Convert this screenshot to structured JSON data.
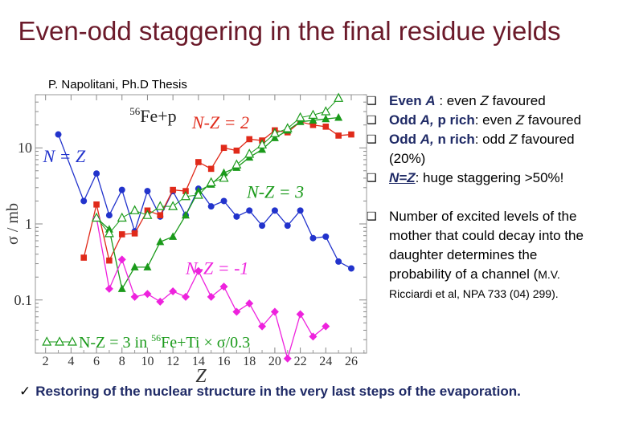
{
  "title": "Even-odd staggering in the final residue yields",
  "source": "P. Napolitani, Ph.D Thesis",
  "bullets": [
    {
      "parts": [
        "Even ",
        "A",
        " :  even ",
        "Z",
        " favoured"
      ]
    },
    {
      "parts": [
        "Odd ",
        "A,",
        " p rich",
        ": even ",
        "Z",
        " favoured"
      ]
    },
    {
      "parts": [
        "Odd ",
        "A,",
        " n rich",
        ": odd ",
        "Z",
        " favoured"
      ],
      "extra": "(20%)"
    },
    {
      "parts": [
        "N=Z",
        ": huge staggering >50%!"
      ]
    }
  ],
  "note": {
    "lines": [
      "Number of excited levels of the",
      "mother that could decay into the",
      "daughter determines the",
      "probability of a channel ("
    ],
    "small": "M.V.",
    "last": "Ricciardi et al, NPA 733 (04) 299)."
  },
  "conclusion": "Restoring of the nuclear structure in the very last steps of the evaporation.",
  "chart_data": {
    "type": "line",
    "title": "56Fe+p",
    "xlabel": "Z",
    "ylabel": "σ / mb",
    "xlim": [
      1.2,
      27.2
    ],
    "ylim": [
      0.02,
      50
    ],
    "yscale": "log",
    "x_ticks": [
      2,
      4,
      6,
      8,
      10,
      12,
      14,
      16,
      18,
      20,
      22,
      24,
      26
    ],
    "y_ticks": [
      {
        "v": 0.1,
        "label": "0.1"
      },
      {
        "v": 1,
        "label": "1"
      },
      {
        "v": 10,
        "label": "10"
      }
    ],
    "series": [
      {
        "name": "N = Z",
        "color": "#2233cc",
        "marker": "circle",
        "x": [
          3,
          5,
          6,
          7,
          8,
          9,
          10,
          11,
          12,
          13,
          14,
          15,
          16,
          17,
          18,
          19,
          20,
          21,
          22,
          23,
          24,
          25,
          26
        ],
        "y": [
          15,
          2.0,
          4.6,
          1.3,
          2.8,
          0.8,
          2.7,
          1.25,
          2.7,
          1.3,
          2.9,
          1.7,
          2.0,
          1.25,
          1.5,
          0.95,
          1.5,
          0.95,
          1.5,
          0.65,
          0.68,
          0.32,
          0.26
        ]
      },
      {
        "name": "N-Z = 2",
        "color": "#e02a1a",
        "marker": "square",
        "x": [
          5,
          6,
          7,
          8,
          9,
          10,
          11,
          12,
          13,
          14,
          15,
          16,
          17,
          18,
          19,
          20,
          21,
          22,
          23,
          24,
          25,
          26
        ],
        "y": [
          0.36,
          1.8,
          0.33,
          0.73,
          0.75,
          1.5,
          1.3,
          2.8,
          2.7,
          6.5,
          5.3,
          10,
          9.2,
          13,
          12.5,
          17,
          16,
          22,
          20,
          19,
          14.5,
          15
        ]
      },
      {
        "name": "N-Z = 3",
        "color": "#1a9a1a",
        "marker": "triangle",
        "x": [
          6,
          7,
          8,
          9,
          10,
          11,
          12,
          13,
          14,
          15,
          16,
          17,
          18,
          19,
          20,
          21,
          22,
          23,
          24,
          25
        ],
        "y": [
          1.2,
          0.85,
          0.14,
          0.27,
          0.27,
          0.58,
          0.68,
          1.3,
          2.7,
          3.3,
          4.7,
          5.5,
          7.5,
          9.5,
          13.5,
          17,
          22,
          23,
          24,
          25
        ]
      },
      {
        "name": "N-Z = -1",
        "color": "#ee22dd",
        "marker": "diamond",
        "x": [
          6,
          7,
          8,
          9,
          10,
          11,
          12,
          13,
          14,
          15,
          16,
          17,
          18,
          19,
          20,
          21,
          22,
          23,
          24
        ],
        "y": [
          1.2,
          0.14,
          0.34,
          0.11,
          0.12,
          0.095,
          0.13,
          0.11,
          0.24,
          0.11,
          0.15,
          0.07,
          0.09,
          0.045,
          0.07,
          0.017,
          0.065,
          0.033,
          0.045
        ]
      },
      {
        "name": "N-Z = 3 in 56Fe+Ti × σ/0.3",
        "color": "#1a9a1a",
        "marker": "open-triangle",
        "x": [
          6,
          7,
          8,
          9,
          10,
          11,
          12,
          13,
          14,
          15,
          16,
          17,
          18,
          19,
          20,
          21,
          22,
          23,
          24,
          25
        ],
        "y": [
          1.2,
          0.75,
          1.2,
          1.5,
          1.3,
          1.7,
          1.7,
          2.3,
          2.4,
          3.5,
          4.0,
          6.0,
          8.3,
          11,
          15.5,
          18,
          25,
          27,
          30,
          45
        ]
      }
    ],
    "annotations": [
      {
        "text": "N = Z",
        "color": "#2233cc"
      },
      {
        "text": "N-Z = 2",
        "color": "#e02a1a"
      },
      {
        "text": "N-Z = 3",
        "color": "#1a9a1a"
      },
      {
        "text": "N-Z = -1",
        "color": "#ee22dd"
      }
    ],
    "legend": {
      "text": "N-Z = 3 in 56Fe+Ti × σ/0.3",
      "placement": "bottom-left"
    }
  }
}
